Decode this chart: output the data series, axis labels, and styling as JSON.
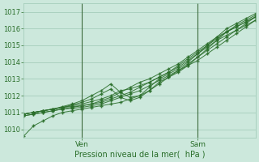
{
  "title": "",
  "xlabel": "Pression niveau de la mer(  hPa )",
  "ylabel": "",
  "ylim": [
    1009.5,
    1017.5
  ],
  "xlim": [
    0,
    48
  ],
  "yticks": [
    1010,
    1011,
    1012,
    1013,
    1014,
    1015,
    1016,
    1017
  ],
  "vlines": [
    12,
    36
  ],
  "vline_labels": [
    "Ven",
    "Sam"
  ],
  "bg_color": "#cce8dc",
  "grid_color": "#9ec8b4",
  "line_color": "#2a6e2a",
  "marker": "+",
  "series": [
    [
      1009.6,
      1010.2,
      1010.5,
      1010.8,
      1011.0,
      1011.1,
      1011.2,
      1011.3,
      1011.4,
      1011.5,
      1011.6,
      1011.8,
      1012.0,
      1012.3,
      1012.7,
      1013.1,
      1013.5,
      1013.9,
      1014.3,
      1014.7,
      1015.1,
      1015.5,
      1015.9,
      1016.3,
      1016.7,
      1017.0
    ],
    [
      1010.8,
      1010.9,
      1011.0,
      1011.1,
      1011.2,
      1011.25,
      1011.3,
      1011.4,
      1011.5,
      1011.7,
      1011.9,
      1012.1,
      1012.3,
      1012.6,
      1012.9,
      1013.2,
      1013.5,
      1013.8,
      1014.1,
      1014.5,
      1014.9,
      1015.3,
      1015.7,
      1016.1,
      1016.5,
      1016.8
    ],
    [
      1010.8,
      1010.9,
      1011.0,
      1011.1,
      1011.2,
      1011.3,
      1011.4,
      1011.5,
      1011.6,
      1011.8,
      1012.0,
      1012.2,
      1012.5,
      1012.8,
      1013.1,
      1013.4,
      1013.7,
      1014.1,
      1014.5,
      1014.9,
      1015.3,
      1015.6,
      1015.9,
      1016.2,
      1016.5,
      1016.8
    ],
    [
      1010.9,
      1011.0,
      1011.1,
      1011.2,
      1011.3,
      1011.35,
      1011.4,
      1011.5,
      1011.7,
      1011.9,
      1012.2,
      1012.5,
      1012.8,
      1013.0,
      1013.3,
      1013.6,
      1013.9,
      1014.3,
      1014.7,
      1015.1,
      1015.5,
      1015.8,
      1016.1,
      1016.4,
      1016.7,
      1016.9
    ],
    [
      1010.9,
      1011.0,
      1011.1,
      1011.2,
      1011.35,
      1011.5,
      1011.7,
      1012.0,
      1012.3,
      1012.7,
      1012.2,
      1011.9,
      1012.0,
      1012.5,
      1013.0,
      1013.3,
      1013.6,
      1014.0,
      1014.5,
      1015.0,
      1015.5,
      1016.0,
      1016.3,
      1016.6,
      1016.9,
      1017.1
    ],
    [
      1010.9,
      1011.0,
      1011.1,
      1011.2,
      1011.3,
      1011.4,
      1011.5,
      1011.65,
      1011.8,
      1012.0,
      1012.3,
      1012.4,
      1012.6,
      1012.8,
      1013.1,
      1013.4,
      1013.8,
      1014.2,
      1014.6,
      1015.0,
      1015.4,
      1015.8,
      1016.1,
      1016.4,
      1016.7,
      1016.9
    ],
    [
      1010.9,
      1011.0,
      1011.1,
      1011.2,
      1011.3,
      1011.45,
      1011.6,
      1011.8,
      1012.1,
      1012.4,
      1011.9,
      1011.7,
      1011.9,
      1012.3,
      1012.8,
      1013.1,
      1013.4,
      1013.8,
      1014.3,
      1014.8,
      1015.3,
      1015.8,
      1016.2,
      1016.5,
      1016.8,
      1017.0
    ]
  ],
  "x_step": 2
}
